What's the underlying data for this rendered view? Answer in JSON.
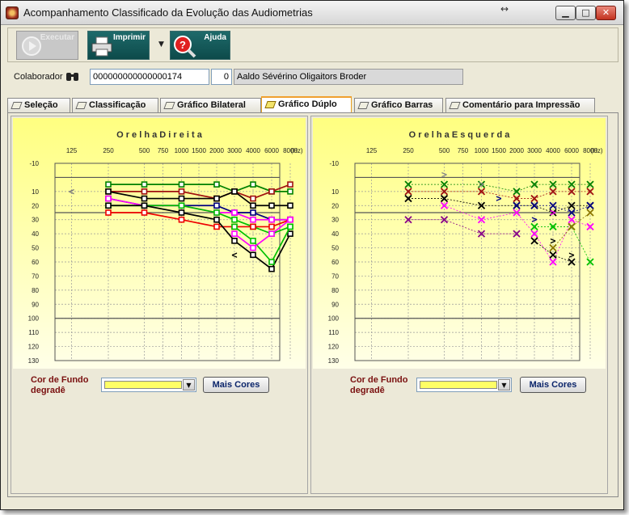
{
  "window": {
    "title": "Acompanhamento Classificado da Evolução das Audiometrias",
    "resize_glyph": "↔"
  },
  "toolbar": {
    "executar_label": "Executar",
    "imprimir_label": "Imprimir",
    "ajuda_label": "Ajuda"
  },
  "collab": {
    "label": "Colaborador",
    "code": "000000000000000174",
    "number": "0",
    "name": "Aaldo Sévérino Oligaitors Broder"
  },
  "tabs": [
    {
      "label": "Seleção"
    },
    {
      "label": "Classificação"
    },
    {
      "label": "Gráfico Bilateral"
    },
    {
      "label": "Gráfico Dúplo"
    },
    {
      "label": "Gráfico Barras"
    },
    {
      "label": "Comentário para Impressão"
    }
  ],
  "active_tab": "Gráfico Dúplo",
  "panels": [
    {
      "bg_label_1": "Cor de Fundo",
      "bg_label_2": "degradê",
      "more_colors": "Mais Cores",
      "selected_color": "#ffff66"
    },
    {
      "bg_label_1": "Cor de Fundo",
      "bg_label_2": "degradê",
      "more_colors": "Mais Cores",
      "selected_color": "#ffff66"
    }
  ],
  "chart_data": [
    {
      "type": "line",
      "title": "O r e l h a   D i r e i t a",
      "x_ticks": [
        "125",
        "250",
        "500",
        "750",
        "1000",
        "1500",
        "2000",
        "3000",
        "4000",
        "6000",
        "8000",
        "(Hz)"
      ],
      "x_freqs": [
        125,
        250,
        500,
        750,
        1000,
        1500,
        2000,
        3000,
        4000,
        6000,
        8000
      ],
      "y_ticks": [
        "-10",
        "10",
        "20",
        "30",
        "40",
        "50",
        "60",
        "70",
        "80",
        "90",
        "100",
        "110",
        "120",
        "130"
      ],
      "ylim": [
        -10,
        130
      ],
      "reference_lines": [
        0,
        25,
        100
      ],
      "background": {
        "top": "#ffff80",
        "bottom": "#ffffe8"
      },
      "markers": [
        {
          "symbol": "<",
          "x": 125,
          "y": 10,
          "color": "#777777"
        },
        {
          "symbol": "<",
          "x": 3000,
          "y": 55,
          "color": "#000000"
        }
      ],
      "series": [
        {
          "color": "#008000",
          "marker": "square",
          "x": [
            250,
            500,
            1000,
            2000,
            3000,
            4000,
            6000,
            8000
          ],
          "y": [
            5,
            5,
            5,
            5,
            10,
            5,
            10,
            10
          ]
        },
        {
          "color": "#a01010",
          "marker": "square",
          "x": [
            250,
            500,
            1000,
            2000,
            3000,
            4000,
            6000,
            8000
          ],
          "y": [
            10,
            10,
            10,
            15,
            10,
            15,
            10,
            5
          ]
        },
        {
          "color": "#000000",
          "marker": "square",
          "x": [
            250,
            500,
            1000,
            2000,
            3000,
            4000,
            6000,
            8000
          ],
          "y": [
            10,
            15,
            15,
            15,
            10,
            20,
            20,
            20
          ]
        },
        {
          "color": "#000080",
          "marker": "square",
          "x": [
            250,
            500,
            1000,
            2000,
            3000,
            4000,
            6000,
            8000
          ],
          "y": [
            15,
            20,
            20,
            20,
            25,
            25,
            30,
            30
          ]
        },
        {
          "color": "#ff00ff",
          "marker": "square",
          "x": [
            250,
            500,
            1000,
            2000,
            3000,
            4000,
            6000,
            8000
          ],
          "y": [
            15,
            20,
            20,
            25,
            25,
            30,
            30,
            30
          ]
        },
        {
          "color": "#00c000",
          "marker": "square",
          "x": [
            250,
            500,
            1000,
            2000,
            3000,
            4000,
            6000,
            8000
          ],
          "y": [
            20,
            20,
            20,
            25,
            30,
            35,
            40,
            35
          ]
        },
        {
          "color": "#ee0000",
          "marker": "square",
          "x": [
            250,
            500,
            1000,
            2000,
            3000,
            4000,
            6000,
            8000
          ],
          "y": [
            25,
            25,
            30,
            35,
            35,
            35,
            35,
            30
          ]
        },
        {
          "color": "#000000",
          "marker": "square",
          "x": [
            250,
            500,
            1000,
            2000,
            3000,
            4000,
            6000,
            8000
          ],
          "y": [
            20,
            20,
            25,
            30,
            45,
            55,
            65,
            40
          ]
        },
        {
          "color": "#00c000",
          "marker": "square",
          "x": [
            3000,
            4000,
            6000,
            8000
          ],
          "y": [
            35,
            45,
            60,
            35
          ]
        },
        {
          "color": "#ff00ff",
          "marker": "square",
          "x": [
            3000,
            4000,
            6000,
            8000
          ],
          "y": [
            40,
            50,
            40,
            30
          ]
        }
      ]
    },
    {
      "type": "scatter",
      "title": "O r e l h a   E s q u e r d a",
      "x_ticks": [
        "125",
        "250",
        "500",
        "750",
        "1000",
        "1500",
        "2000",
        "3000",
        "4000",
        "6000",
        "8000",
        "(Hz)"
      ],
      "x_freqs": [
        125,
        250,
        500,
        750,
        1000,
        1500,
        2000,
        3000,
        4000,
        6000,
        8000
      ],
      "y_ticks": [
        "-10",
        "10",
        "20",
        "30",
        "40",
        "50",
        "60",
        "70",
        "80",
        "90",
        "100",
        "110",
        "120",
        "130"
      ],
      "ylim": [
        -10,
        130
      ],
      "reference_lines": [
        0,
        25,
        100
      ],
      "background": {
        "top": "#ffff80",
        "bottom": "#ffffe8"
      },
      "markers": [
        {
          "symbol": ">",
          "x": 500,
          "y": -2,
          "color": "#888888"
        },
        {
          "symbol": ">",
          "x": 1000,
          "y": 5,
          "color": "#888888"
        },
        {
          "symbol": ">",
          "x": 1500,
          "y": 15,
          "color": "#000080"
        },
        {
          "symbol": ">",
          "x": 3000,
          "y": 30,
          "color": "#000080"
        },
        {
          "symbol": ">",
          "x": 4000,
          "y": 25,
          "color": "#ff00ff"
        },
        {
          "symbol": ">",
          "x": 4000,
          "y": 45,
          "color": "#000000"
        },
        {
          "symbol": ">",
          "x": 6000,
          "y": 55,
          "color": "#000000"
        }
      ],
      "series": [
        {
          "color": "#008000",
          "marker": "x",
          "x": [
            250,
            500,
            1000,
            2000,
            3000,
            4000,
            6000,
            8000
          ],
          "y": [
            5,
            5,
            5,
            10,
            5,
            5,
            5,
            5
          ]
        },
        {
          "color": "#a01010",
          "marker": "x",
          "x": [
            250,
            500,
            1000,
            2000,
            3000,
            4000,
            6000,
            8000
          ],
          "y": [
            10,
            10,
            10,
            15,
            15,
            10,
            10,
            10
          ]
        },
        {
          "color": "#000000",
          "marker": "x",
          "x": [
            250,
            500,
            1000,
            2000,
            3000,
            4000,
            6000,
            8000
          ],
          "y": [
            15,
            15,
            20,
            20,
            20,
            25,
            20,
            20
          ]
        },
        {
          "color": "#000080",
          "marker": "x",
          "x": [
            2000,
            3000,
            4000,
            6000,
            8000
          ],
          "y": [
            20,
            20,
            20,
            25,
            20
          ]
        },
        {
          "color": "#ff00ff",
          "marker": "x",
          "x": [
            500,
            1000,
            2000,
            3000,
            4000,
            6000,
            8000
          ],
          "y": [
            20,
            30,
            25,
            40,
            60,
            30,
            35
          ]
        },
        {
          "color": "#00c000",
          "marker": "x",
          "x": [
            3000,
            4000,
            6000,
            8000
          ],
          "y": [
            35,
            35,
            35,
            60
          ]
        },
        {
          "color": "#880088",
          "marker": "x",
          "x": [
            250,
            500,
            1000,
            2000
          ],
          "y": [
            30,
            30,
            40,
            40
          ]
        },
        {
          "color": "#8b7500",
          "marker": "x",
          "x": [
            4000,
            6000,
            8000
          ],
          "y": [
            50,
            35,
            25
          ]
        },
        {
          "color": "#000000",
          "marker": "x",
          "x": [
            3000,
            4000,
            6000
          ],
          "y": [
            45,
            55,
            60
          ]
        }
      ]
    }
  ]
}
